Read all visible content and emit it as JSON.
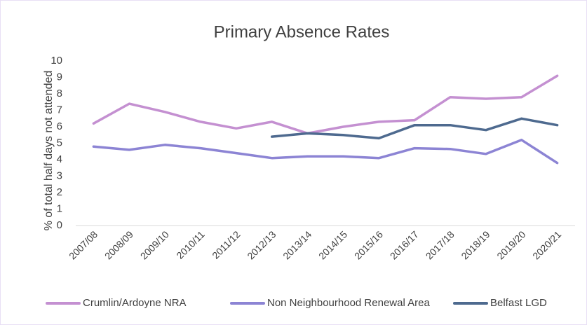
{
  "chart_data": {
    "type": "line",
    "title": "Primary Absence Rates",
    "y_label": "% of total half days not attended",
    "categories": [
      "2007/08",
      "2008/09",
      "2009/10",
      "2010/11",
      "2011/12",
      "2012/13",
      "2013/14",
      "2014/15",
      "2015/16",
      "2016/17",
      "2017/18",
      "2018/19",
      "2019/20",
      "2020/21"
    ],
    "series": [
      {
        "name": "Crumlin/Ardoyne NRA",
        "color": "#c490d1",
        "values": [
          6.2,
          7.4,
          6.9,
          6.3,
          5.9,
          6.3,
          5.6,
          6.0,
          6.3,
          6.4,
          7.8,
          7.7,
          7.8,
          9.1
        ]
      },
      {
        "name": "Non Neighbourhood Renewal Area",
        "color": "#8c84d4",
        "values": [
          4.8,
          4.6,
          4.9,
          4.7,
          4.4,
          4.1,
          4.2,
          4.2,
          4.1,
          4.7,
          4.65,
          4.35,
          5.2,
          3.8
        ]
      },
      {
        "name": "Belfast LGD",
        "color": "#4e6a8f",
        "values": [
          null,
          null,
          null,
          null,
          null,
          5.4,
          5.6,
          5.5,
          5.3,
          6.1,
          6.1,
          5.8,
          6.5,
          6.1
        ]
      }
    ],
    "ylim": [
      0,
      10
    ],
    "yticks": [
      0,
      1,
      2,
      3,
      4,
      5,
      6,
      7,
      8,
      9,
      10
    ],
    "legend": "bottom"
  }
}
